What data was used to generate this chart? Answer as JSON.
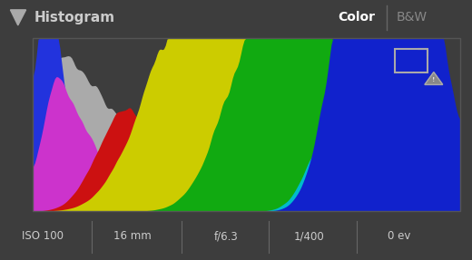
{
  "bg_color": "#3d3d3d",
  "header_bg": "#2b2b2b",
  "plot_bg": "#252525",
  "border_color": "#555555",
  "title": "Histogram",
  "title_color": "#cccccc",
  "color_label": "Color",
  "bw_label": "B&W",
  "active_label_color": "#ffffff",
  "inactive_label_color": "#888888",
  "footer_items": [
    "ISO 100",
    "16 mm",
    "f/6.3",
    "1/400",
    "0 ev"
  ],
  "footer_color": "#cccccc",
  "footer_bg": "#3a3a3a",
  "gray_color": "#aaaaaa",
  "blue_color": "#2233dd",
  "magenta_color": "#cc33cc",
  "red_color": "#cc1111",
  "yellow_color": "#cccc00",
  "green_color": "#11aa11",
  "cyan_color": "#00bbcc",
  "blue2_color": "#1122cc"
}
